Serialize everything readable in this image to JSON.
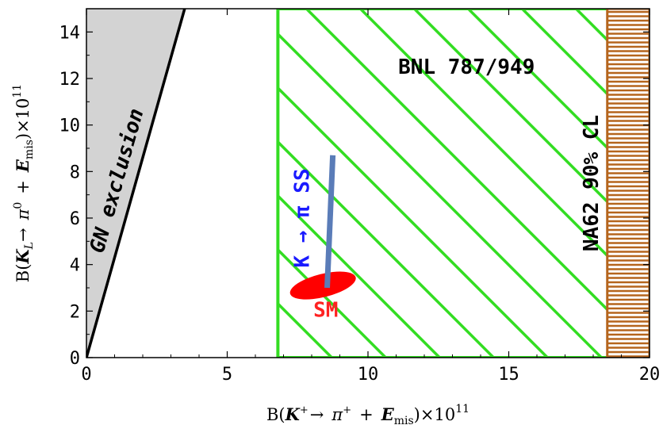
{
  "chart_data": {
    "type": "scatter",
    "x_axis": {
      "range": [
        0,
        20
      ],
      "ticks": [
        0,
        5,
        10,
        15,
        20
      ],
      "label": {
        "prefix": "B(",
        "meson": "K",
        "meson_sup": "+",
        "arrow": "→",
        "pion": "π",
        "pion_sup": "+",
        "plus": "+",
        "emis": "E",
        "emis_sub": "mis",
        "suffix": ")×10",
        "power": "11"
      }
    },
    "y_axis": {
      "range": [
        0,
        15
      ],
      "ticks": [
        0,
        2,
        4,
        6,
        8,
        10,
        12,
        14
      ],
      "label": {
        "prefix": "B(",
        "meson": "K",
        "meson_sub": "L",
        "arrow": "→",
        "pion": "π",
        "pion_sup": "0",
        "plus": "+",
        "emis": "E",
        "emis_sub": "mis",
        "suffix": ")×10",
        "power": "11"
      }
    },
    "regions": [
      {
        "label": "GN exclusion",
        "kind": "grandshaw-nir-bound",
        "relation": "B(KL) ≤ 4.3 × B(K+)",
        "fill_color": "#d3d3d3",
        "label_color": "#000000"
      },
      {
        "label": "BNL 787/949",
        "x_min": 6.8,
        "x_max": 20,
        "pattern": "diagonal-hatch",
        "color": "#33dd22",
        "label_color": "#000000"
      },
      {
        "label": "NA62 90% CL",
        "x_min": 18.5,
        "x_max": 20,
        "pattern": "horizontal-hatch",
        "color": "#b5651d",
        "label_color": "#000000"
      }
    ],
    "points": [
      {
        "label": "SM",
        "x": 8.4,
        "y": 3.1,
        "x_extent": 2.4,
        "y_extent": 1.0,
        "shape": "ellipse",
        "color": "#ff0000",
        "label_color": "#ff2222"
      }
    ],
    "lines": [
      {
        "label": "K → π SS",
        "x_start": 8.55,
        "y_start": 3.0,
        "x_end": 8.75,
        "y_end": 8.7,
        "color": "#5a7cb8",
        "label_color": "#1a1aff"
      }
    ]
  }
}
